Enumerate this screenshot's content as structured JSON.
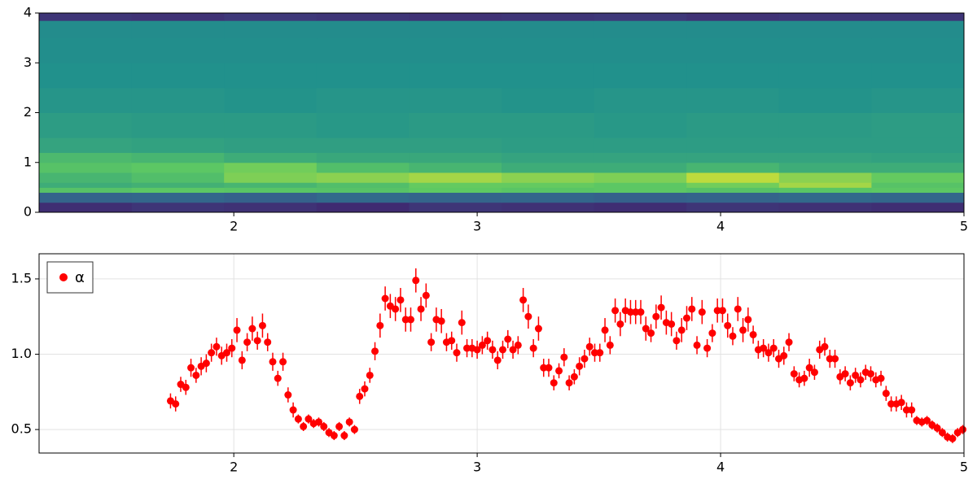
{
  "chart_data": [
    {
      "type": "heatmap",
      "colormap": "viridis",
      "x_edges": [
        1.2,
        1.58,
        1.96,
        2.34,
        2.72,
        3.1,
        3.48,
        3.86,
        4.24,
        4.62,
        5.0
      ],
      "y_edges": [
        0,
        0.2,
        0.4,
        0.5,
        0.6,
        0.8,
        1.0,
        1.2,
        1.5,
        2.0,
        2.5,
        3.0,
        3.5,
        3.85,
        4.0
      ],
      "values": [
        [
          0.14,
          0.16,
          0.15,
          0.13,
          0.16,
          0.15,
          0.14,
          0.16,
          0.15,
          0.14
        ],
        [
          0.32,
          0.33,
          0.31,
          0.34,
          0.32,
          0.33,
          0.31,
          0.32,
          0.34,
          0.33
        ],
        [
          0.72,
          0.74,
          0.73,
          0.72,
          0.75,
          0.73,
          0.74,
          0.72,
          0.73,
          0.74
        ],
        [
          0.62,
          0.64,
          0.66,
          0.7,
          0.76,
          0.76,
          0.74,
          0.78,
          0.86,
          0.72
        ],
        [
          0.66,
          0.7,
          0.8,
          0.82,
          0.86,
          0.82,
          0.8,
          0.9,
          0.82,
          0.76
        ],
        [
          0.72,
          0.74,
          0.78,
          0.7,
          0.66,
          0.62,
          0.62,
          0.66,
          0.62,
          0.62
        ],
        [
          0.68,
          0.66,
          0.62,
          0.6,
          0.6,
          0.58,
          0.58,
          0.58,
          0.58,
          0.57
        ],
        [
          0.58,
          0.57,
          0.56,
          0.56,
          0.56,
          0.55,
          0.55,
          0.55,
          0.55,
          0.55
        ],
        [
          0.55,
          0.54,
          0.54,
          0.53,
          0.54,
          0.54,
          0.53,
          0.54,
          0.54,
          0.55
        ],
        [
          0.52,
          0.52,
          0.51,
          0.52,
          0.52,
          0.51,
          0.52,
          0.52,
          0.51,
          0.52
        ],
        [
          0.5,
          0.5,
          0.5,
          0.5,
          0.5,
          0.5,
          0.5,
          0.5,
          0.5,
          0.5
        ],
        [
          0.49,
          0.49,
          0.49,
          0.49,
          0.49,
          0.49,
          0.49,
          0.49,
          0.49,
          0.49
        ],
        [
          0.48,
          0.48,
          0.48,
          0.48,
          0.48,
          0.48,
          0.48,
          0.48,
          0.48,
          0.48
        ],
        [
          0.16,
          0.15,
          0.17,
          0.16,
          0.15,
          0.16,
          0.17,
          0.15,
          0.16,
          0.16
        ]
      ],
      "xlim": [
        1.2,
        5
      ],
      "xticks": [
        2,
        3,
        4,
        5
      ],
      "ylim": [
        0,
        4
      ],
      "yticks": [
        0,
        1,
        2,
        3,
        4
      ]
    },
    {
      "type": "scatter",
      "grid": true,
      "legend": "top-left",
      "x": [
        1.74,
        1.761,
        1.782,
        1.803,
        1.824,
        1.845,
        1.866,
        1.887,
        1.908,
        1.929,
        1.95,
        1.971,
        1.992,
        2.013,
        2.034,
        2.055,
        2.076,
        2.097,
        2.118,
        2.139,
        2.16,
        2.181,
        2.202,
        2.223,
        2.244,
        2.265,
        2.286,
        2.307,
        2.328,
        2.349,
        2.37,
        2.391,
        2.412,
        2.433,
        2.454,
        2.475,
        2.496,
        2.517,
        2.538,
        2.559,
        2.58,
        2.601,
        2.622,
        2.643,
        2.664,
        2.685,
        2.706,
        2.727,
        2.748,
        2.769,
        2.79,
        2.811,
        2.832,
        2.853,
        2.874,
        2.895,
        2.916,
        2.937,
        2.958,
        2.979,
        3.0,
        3.021,
        3.042,
        3.063,
        3.084,
        3.105,
        3.126,
        3.147,
        3.168,
        3.189,
        3.21,
        3.231,
        3.252,
        3.273,
        3.294,
        3.315,
        3.336,
        3.357,
        3.378,
        3.399,
        3.42,
        3.441,
        3.462,
        3.483,
        3.504,
        3.525,
        3.546,
        3.567,
        3.588,
        3.609,
        3.63,
        3.651,
        3.672,
        3.693,
        3.714,
        3.735,
        3.756,
        3.777,
        3.798,
        3.819,
        3.84,
        3.861,
        3.882,
        3.903,
        3.924,
        3.945,
        3.966,
        3.987,
        4.008,
        4.029,
        4.05,
        4.071,
        4.092,
        4.113,
        4.134,
        4.155,
        4.176,
        4.197,
        4.218,
        4.239,
        4.26,
        4.281,
        4.302,
        4.323,
        4.344,
        4.365,
        4.386,
        4.407,
        4.428,
        4.449,
        4.47,
        4.491,
        4.512,
        4.533,
        4.554,
        4.575,
        4.596,
        4.617,
        4.638,
        4.659,
        4.68,
        4.701,
        4.722,
        4.743,
        4.764,
        4.785,
        4.806,
        4.827,
        4.848,
        4.869,
        4.89,
        4.911,
        4.932,
        4.953,
        4.974,
        4.995
      ],
      "series": [
        {
          "name": "α",
          "color": "#ff0000",
          "values": [
            0.69,
            0.67,
            0.8,
            0.78,
            0.91,
            0.86,
            0.92,
            0.94,
            1.01,
            1.05,
            0.99,
            1.01,
            1.04,
            1.16,
            0.96,
            1.08,
            1.17,
            1.09,
            1.19,
            1.08,
            0.95,
            0.84,
            0.95,
            0.73,
            0.63,
            0.57,
            0.52,
            0.57,
            0.54,
            0.55,
            0.52,
            0.48,
            0.46,
            0.52,
            0.46,
            0.55,
            0.5,
            0.72,
            0.77,
            0.86,
            1.02,
            1.19,
            1.37,
            1.32,
            1.3,
            1.36,
            1.23,
            1.23,
            1.49,
            1.3,
            1.39,
            1.08,
            1.23,
            1.22,
            1.08,
            1.09,
            1.01,
            1.21,
            1.04,
            1.04,
            1.03,
            1.06,
            1.09,
            1.03,
            0.96,
            1.03,
            1.1,
            1.03,
            1.06,
            1.36,
            1.25,
            1.04,
            1.17,
            0.91,
            0.91,
            0.81,
            0.89,
            0.98,
            0.81,
            0.85,
            0.92,
            0.97,
            1.05,
            1.01,
            1.01,
            1.16,
            1.06,
            1.29,
            1.2,
            1.29,
            1.28,
            1.28,
            1.28,
            1.17,
            1.14,
            1.25,
            1.31,
            1.21,
            1.2,
            1.09,
            1.16,
            1.24,
            1.3,
            1.06,
            1.28,
            1.04,
            1.14,
            1.29,
            1.29,
            1.19,
            1.12,
            1.3,
            1.16,
            1.23,
            1.13,
            1.03,
            1.04,
            1.01,
            1.04,
            0.97,
            0.99,
            1.08,
            0.87,
            0.83,
            0.84,
            0.91,
            0.88,
            1.03,
            1.05,
            0.97,
            0.97,
            0.85,
            0.87,
            0.81,
            0.86,
            0.83,
            0.88,
            0.87,
            0.83,
            0.84,
            0.74,
            0.67,
            0.67,
            0.68,
            0.63,
            0.63,
            0.56,
            0.55,
            0.56,
            0.53,
            0.51,
            0.48,
            0.45,
            0.44,
            0.48,
            0.5
          ],
          "errors": [
            0.05,
            0.05,
            0.05,
            0.05,
            0.06,
            0.05,
            0.06,
            0.06,
            0.06,
            0.06,
            0.06,
            0.06,
            0.06,
            0.08,
            0.06,
            0.06,
            0.08,
            0.06,
            0.08,
            0.06,
            0.06,
            0.05,
            0.06,
            0.05,
            0.05,
            0.03,
            0.03,
            0.03,
            0.03,
            0.03,
            0.03,
            0.03,
            0.03,
            0.03,
            0.03,
            0.03,
            0.03,
            0.05,
            0.05,
            0.05,
            0.06,
            0.08,
            0.08,
            0.08,
            0.08,
            0.08,
            0.08,
            0.08,
            0.08,
            0.08,
            0.08,
            0.06,
            0.08,
            0.08,
            0.06,
            0.06,
            0.06,
            0.08,
            0.06,
            0.06,
            0.06,
            0.06,
            0.06,
            0.06,
            0.06,
            0.06,
            0.06,
            0.06,
            0.06,
            0.08,
            0.08,
            0.06,
            0.08,
            0.06,
            0.06,
            0.05,
            0.05,
            0.06,
            0.05,
            0.05,
            0.06,
            0.06,
            0.06,
            0.06,
            0.06,
            0.08,
            0.06,
            0.08,
            0.08,
            0.08,
            0.08,
            0.08,
            0.08,
            0.08,
            0.06,
            0.08,
            0.08,
            0.08,
            0.08,
            0.06,
            0.08,
            0.08,
            0.08,
            0.06,
            0.08,
            0.06,
            0.06,
            0.08,
            0.08,
            0.08,
            0.06,
            0.08,
            0.08,
            0.08,
            0.06,
            0.06,
            0.06,
            0.06,
            0.06,
            0.06,
            0.06,
            0.06,
            0.05,
            0.05,
            0.05,
            0.06,
            0.05,
            0.06,
            0.06,
            0.06,
            0.06,
            0.05,
            0.05,
            0.05,
            0.05,
            0.05,
            0.05,
            0.05,
            0.05,
            0.05,
            0.05,
            0.05,
            0.05,
            0.05,
            0.05,
            0.05,
            0.03,
            0.03,
            0.03,
            0.03,
            0.03,
            0.03,
            0.03,
            0.03,
            0.03,
            0.03
          ]
        }
      ],
      "xlim": [
        1.2,
        5
      ],
      "xticks": [
        2,
        3,
        4,
        5
      ],
      "ylim": [
        0.344,
        1.667
      ],
      "yticks": [
        0.5,
        {
          "value": 1,
          "label": "1.0"
        },
        1.5
      ]
    }
  ]
}
